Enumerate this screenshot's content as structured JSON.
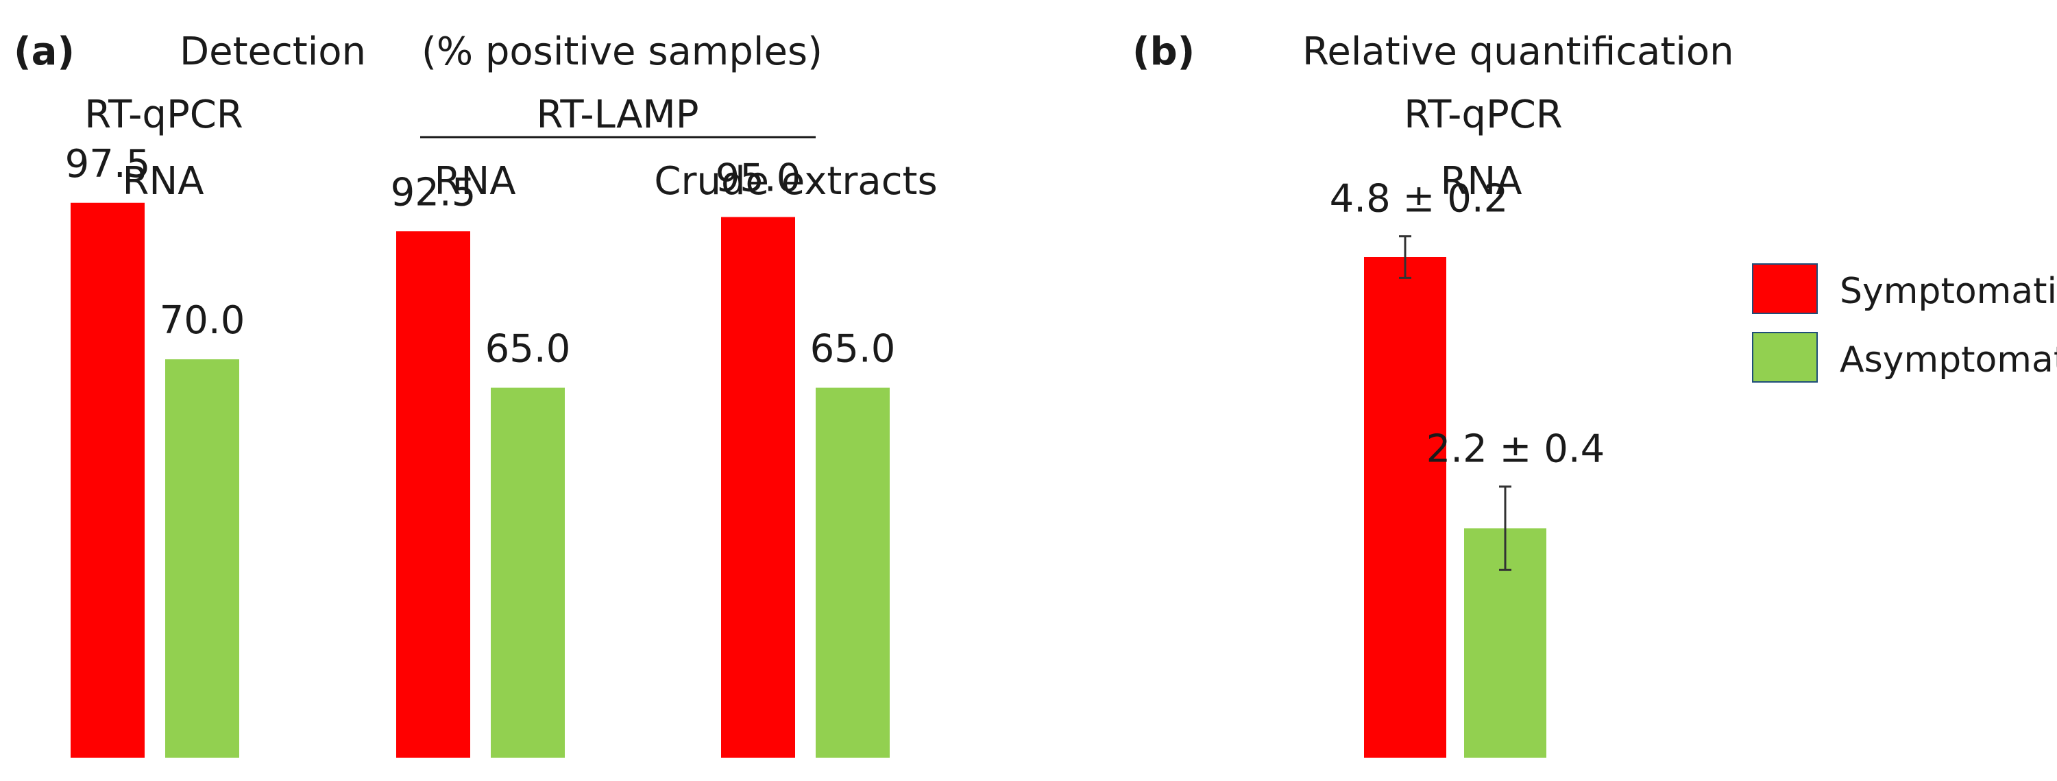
{
  "chart_data": [
    {
      "panel": "(a)",
      "type": "bar",
      "title": "Detection",
      "subtitle": "(% positive samples)",
      "ylim": [
        0,
        100
      ],
      "grid": false,
      "method_labels": [
        "RT-qPCR",
        "RT-LAMP"
      ],
      "categories": [
        "RNA",
        "RNA",
        "Crude extracts"
      ],
      "series": [
        {
          "name": "Symptomatic",
          "values": [
            97.5,
            92.5,
            95.0
          ]
        },
        {
          "name": "Asymptomatic",
          "values": [
            70.0,
            65.0,
            65.0
          ]
        }
      ],
      "value_labels": {
        "Symptomatic": [
          "97.5",
          "92.5",
          "95.0"
        ],
        "Asymptomatic": [
          "70.0",
          "65.0",
          "65.0"
        ]
      }
    },
    {
      "panel": "(b)",
      "type": "bar",
      "title": "Relative quantification",
      "method_label": "RT-qPCR",
      "category": "RNA",
      "ylim": [
        0,
        5.4
      ],
      "grid": false,
      "series": [
        {
          "name": "Symptomatic",
          "value": 4.8,
          "error": 0.2,
          "label": "4.8 ± 0.2"
        },
        {
          "name": "Asymptomatic",
          "value": 2.2,
          "error": 0.4,
          "label": "2.2 ± 0.4"
        }
      ]
    }
  ],
  "legend": {
    "placement": "right",
    "items": [
      {
        "label": "Symptomatic",
        "color": "#ff0000"
      },
      {
        "label": "Asymptomatic",
        "color": "#92d050"
      }
    ]
  }
}
